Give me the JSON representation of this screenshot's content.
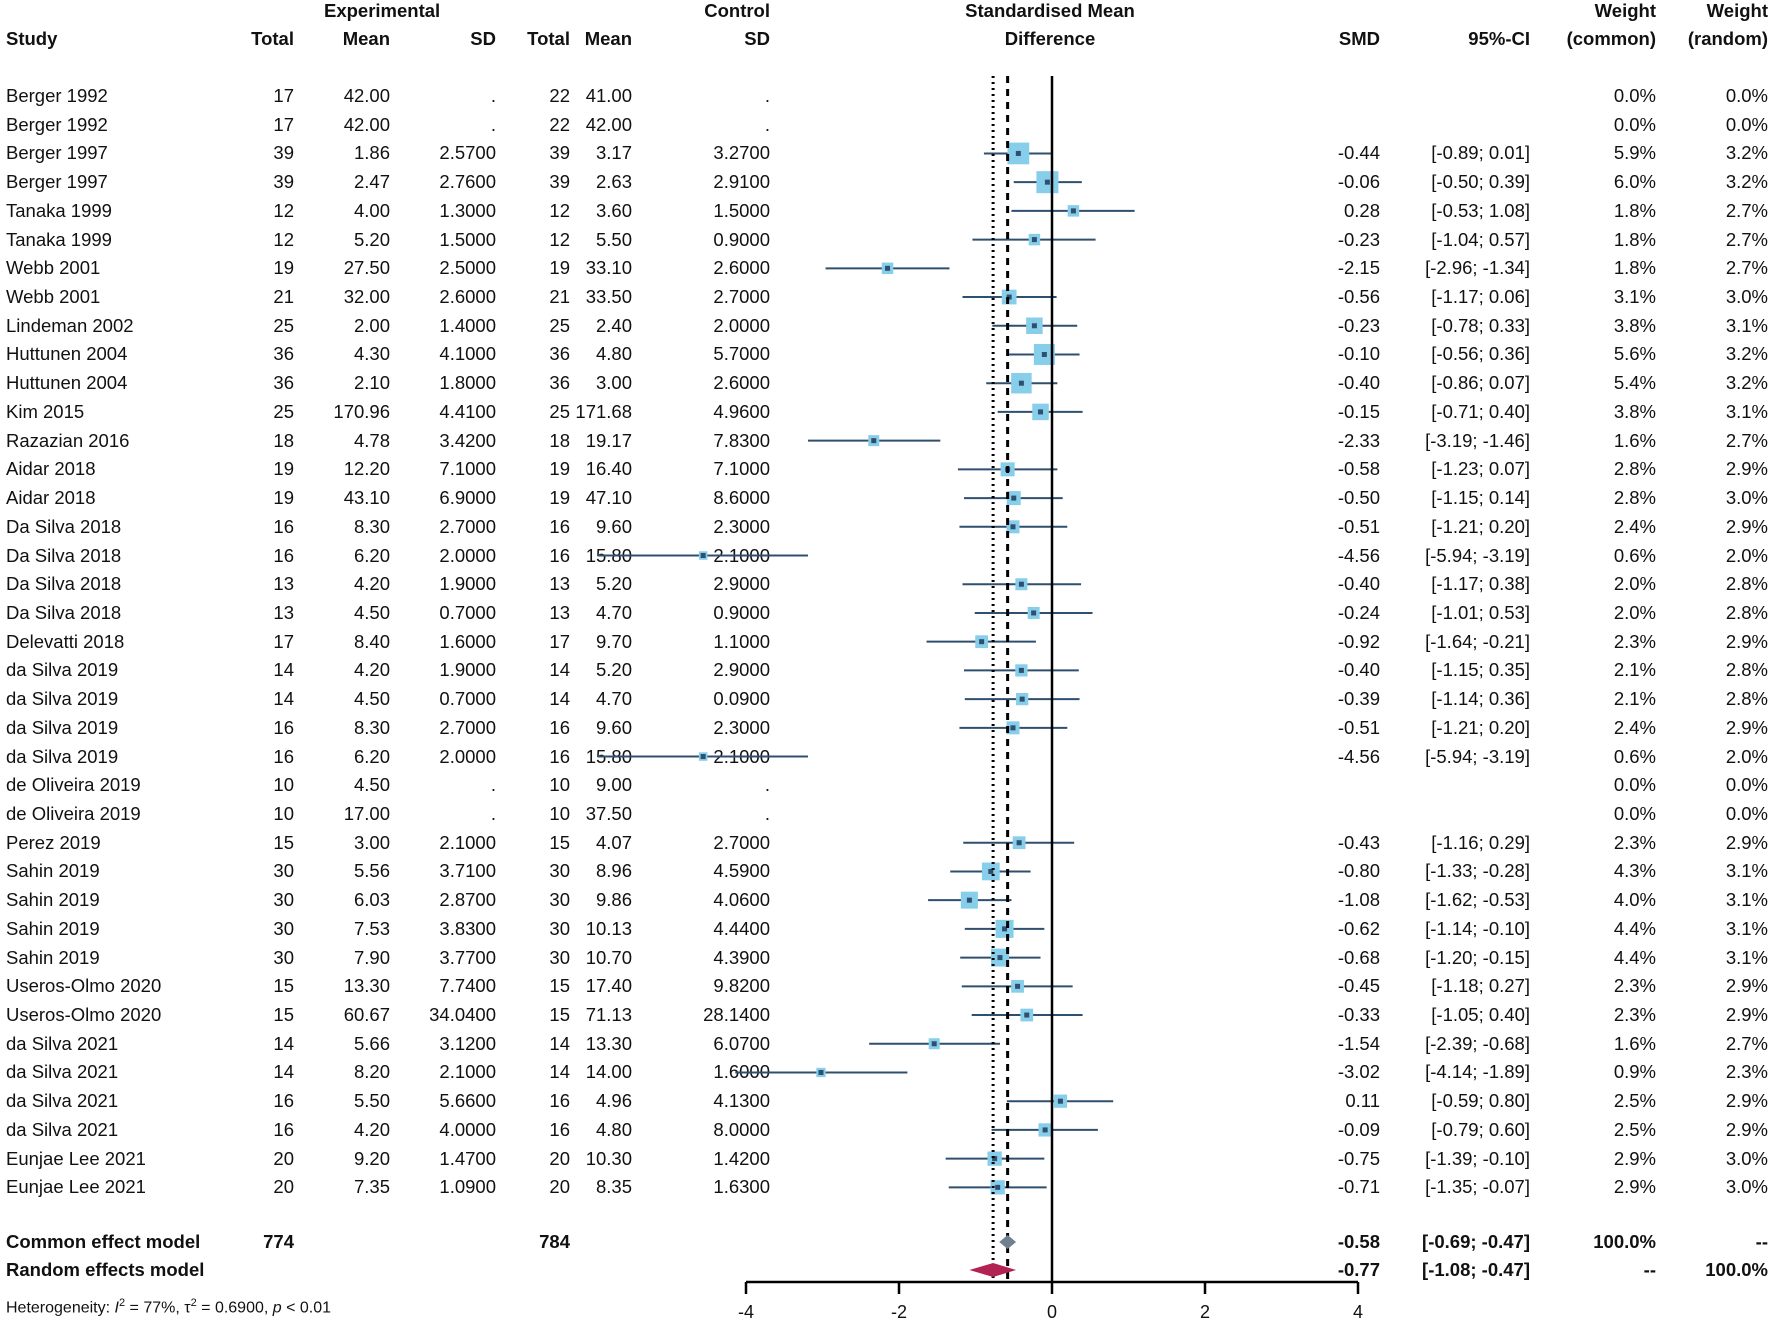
{
  "headers": {
    "experimental": "Experimental",
    "control": "Control",
    "smd_group_line1": "Standardised Mean",
    "smd_group_line2": "Difference",
    "study": "Study",
    "total": "Total",
    "mean": "Mean",
    "sd": "SD",
    "smd": "SMD",
    "ci": "95%-CI",
    "weight": "Weight",
    "weight_common": "(common)",
    "weight_random": "(random)"
  },
  "chart_data": {
    "type": "forest",
    "title": "Standardised Mean Difference",
    "xlim": [
      -4,
      4
    ],
    "xticks": [
      "-4",
      "-2",
      "0",
      "2",
      "4"
    ],
    "xtick_values": [
      -4,
      -2,
      0,
      2,
      4
    ],
    "null_line": 0,
    "common_estimate": -0.58,
    "random_estimate": -0.77,
    "studies": [
      {
        "study": "Berger 1992",
        "e_total": "17",
        "e_mean": "42.00",
        "e_sd": ".",
        "c_total": "22",
        "c_mean": "41.00",
        "c_sd": ".",
        "smd": "",
        "ci": "",
        "w_common": "0.0%",
        "w_random": "0.0%",
        "est": null,
        "lo": null,
        "hi": null,
        "w": 0
      },
      {
        "study": "Berger 1992",
        "e_total": "17",
        "e_mean": "42.00",
        "e_sd": ".",
        "c_total": "22",
        "c_mean": "42.00",
        "c_sd": ".",
        "smd": "",
        "ci": "",
        "w_common": "0.0%",
        "w_random": "0.0%",
        "est": null,
        "lo": null,
        "hi": null,
        "w": 0
      },
      {
        "study": "Berger 1997",
        "e_total": "39",
        "e_mean": "1.86",
        "e_sd": "2.5700",
        "c_total": "39",
        "c_mean": "3.17",
        "c_sd": "3.2700",
        "smd": "-0.44",
        "ci": "[-0.89; 0.01]",
        "w_common": "5.9%",
        "w_random": "3.2%",
        "est": -0.44,
        "lo": -0.89,
        "hi": 0.01,
        "w": 5.9
      },
      {
        "study": "Berger 1997",
        "e_total": "39",
        "e_mean": "2.47",
        "e_sd": "2.7600",
        "c_total": "39",
        "c_mean": "2.63",
        "c_sd": "2.9100",
        "smd": "-0.06",
        "ci": "[-0.50; 0.39]",
        "w_common": "6.0%",
        "w_random": "3.2%",
        "est": -0.06,
        "lo": -0.5,
        "hi": 0.39,
        "w": 6.0
      },
      {
        "study": "Tanaka 1999",
        "e_total": "12",
        "e_mean": "4.00",
        "e_sd": "1.3000",
        "c_total": "12",
        "c_mean": "3.60",
        "c_sd": "1.5000",
        "smd": "0.28",
        "ci": "[-0.53; 1.08]",
        "w_common": "1.8%",
        "w_random": "2.7%",
        "est": 0.28,
        "lo": -0.53,
        "hi": 1.08,
        "w": 1.8
      },
      {
        "study": "Tanaka 1999",
        "e_total": "12",
        "e_mean": "5.20",
        "e_sd": "1.5000",
        "c_total": "12",
        "c_mean": "5.50",
        "c_sd": "0.9000",
        "smd": "-0.23",
        "ci": "[-1.04; 0.57]",
        "w_common": "1.8%",
        "w_random": "2.7%",
        "est": -0.23,
        "lo": -1.04,
        "hi": 0.57,
        "w": 1.8
      },
      {
        "study": "Webb 2001",
        "e_total": "19",
        "e_mean": "27.50",
        "e_sd": "2.5000",
        "c_total": "19",
        "c_mean": "33.10",
        "c_sd": "2.6000",
        "smd": "-2.15",
        "ci": "[-2.96; -1.34]",
        "w_common": "1.8%",
        "w_random": "2.7%",
        "est": -2.15,
        "lo": -2.96,
        "hi": -1.34,
        "w": 1.8
      },
      {
        "study": "Webb 2001",
        "e_total": "21",
        "e_mean": "32.00",
        "e_sd": "2.6000",
        "c_total": "21",
        "c_mean": "33.50",
        "c_sd": "2.7000",
        "smd": "-0.56",
        "ci": "[-1.17; 0.06]",
        "w_common": "3.1%",
        "w_random": "3.0%",
        "est": -0.56,
        "lo": -1.17,
        "hi": 0.06,
        "w": 3.1
      },
      {
        "study": "Lindeman 2002",
        "e_total": "25",
        "e_mean": "2.00",
        "e_sd": "1.4000",
        "c_total": "25",
        "c_mean": "2.40",
        "c_sd": "2.0000",
        "smd": "-0.23",
        "ci": "[-0.78; 0.33]",
        "w_common": "3.8%",
        "w_random": "3.1%",
        "est": -0.23,
        "lo": -0.78,
        "hi": 0.33,
        "w": 3.8
      },
      {
        "study": "Huttunen 2004",
        "e_total": "36",
        "e_mean": "4.30",
        "e_sd": "4.1000",
        "c_total": "36",
        "c_mean": "4.80",
        "c_sd": "5.7000",
        "smd": "-0.10",
        "ci": "[-0.56; 0.36]",
        "w_common": "5.6%",
        "w_random": "3.2%",
        "est": -0.1,
        "lo": -0.56,
        "hi": 0.36,
        "w": 5.6
      },
      {
        "study": "Huttunen 2004",
        "e_total": "36",
        "e_mean": "2.10",
        "e_sd": "1.8000",
        "c_total": "36",
        "c_mean": "3.00",
        "c_sd": "2.6000",
        "smd": "-0.40",
        "ci": "[-0.86; 0.07]",
        "w_common": "5.4%",
        "w_random": "3.2%",
        "est": -0.4,
        "lo": -0.86,
        "hi": 0.07,
        "w": 5.4
      },
      {
        "study": "Kim 2015",
        "e_total": "25",
        "e_mean": "170.96",
        "e_sd": "4.4100",
        "c_total": "25",
        "c_mean": "171.68",
        "c_sd": "4.9600",
        "smd": "-0.15",
        "ci": "[-0.71; 0.40]",
        "w_common": "3.8%",
        "w_random": "3.1%",
        "est": -0.15,
        "lo": -0.71,
        "hi": 0.4,
        "w": 3.8
      },
      {
        "study": "Razazian 2016",
        "e_total": "18",
        "e_mean": "4.78",
        "e_sd": "3.4200",
        "c_total": "18",
        "c_mean": "19.17",
        "c_sd": "7.8300",
        "smd": "-2.33",
        "ci": "[-3.19; -1.46]",
        "w_common": "1.6%",
        "w_random": "2.7%",
        "est": -2.33,
        "lo": -3.19,
        "hi": -1.46,
        "w": 1.6
      },
      {
        "study": "Aidar 2018",
        "e_total": "19",
        "e_mean": "12.20",
        "e_sd": "7.1000",
        "c_total": "19",
        "c_mean": "16.40",
        "c_sd": "7.1000",
        "smd": "-0.58",
        "ci": "[-1.23; 0.07]",
        "w_common": "2.8%",
        "w_random": "2.9%",
        "est": -0.58,
        "lo": -1.23,
        "hi": 0.07,
        "w": 2.8
      },
      {
        "study": "Aidar 2018",
        "e_total": "19",
        "e_mean": "43.10",
        "e_sd": "6.9000",
        "c_total": "19",
        "c_mean": "47.10",
        "c_sd": "8.6000",
        "smd": "-0.50",
        "ci": "[-1.15; 0.14]",
        "w_common": "2.8%",
        "w_random": "3.0%",
        "est": -0.5,
        "lo": -1.15,
        "hi": 0.14,
        "w": 2.8
      },
      {
        "study": "Da Silva 2018",
        "e_total": "16",
        "e_mean": "8.30",
        "e_sd": "2.7000",
        "c_total": "16",
        "c_mean": "9.60",
        "c_sd": "2.3000",
        "smd": "-0.51",
        "ci": "[-1.21; 0.20]",
        "w_common": "2.4%",
        "w_random": "2.9%",
        "est": -0.51,
        "lo": -1.21,
        "hi": 0.2,
        "w": 2.4
      },
      {
        "study": "Da Silva 2018",
        "e_total": "16",
        "e_mean": "6.20",
        "e_sd": "2.0000",
        "c_total": "16",
        "c_mean": "15.80",
        "c_sd": "2.1000",
        "smd": "-4.56",
        "ci": "[-5.94; -3.19]",
        "w_common": "0.6%",
        "w_random": "2.0%",
        "est": -4.56,
        "lo": -5.94,
        "hi": -3.19,
        "w": 0.6
      },
      {
        "study": "Da Silva 2018",
        "e_total": "13",
        "e_mean": "4.20",
        "e_sd": "1.9000",
        "c_total": "13",
        "c_mean": "5.20",
        "c_sd": "2.9000",
        "smd": "-0.40",
        "ci": "[-1.17; 0.38]",
        "w_common": "2.0%",
        "w_random": "2.8%",
        "est": -0.4,
        "lo": -1.17,
        "hi": 0.38,
        "w": 2.0
      },
      {
        "study": "Da Silva 2018",
        "e_total": "13",
        "e_mean": "4.50",
        "e_sd": "0.7000",
        "c_total": "13",
        "c_mean": "4.70",
        "c_sd": "0.9000",
        "smd": "-0.24",
        "ci": "[-1.01; 0.53]",
        "w_common": "2.0%",
        "w_random": "2.8%",
        "est": -0.24,
        "lo": -1.01,
        "hi": 0.53,
        "w": 2.0
      },
      {
        "study": "Delevatti 2018",
        "e_total": "17",
        "e_mean": "8.40",
        "e_sd": "1.6000",
        "c_total": "17",
        "c_mean": "9.70",
        "c_sd": "1.1000",
        "smd": "-0.92",
        "ci": "[-1.64; -0.21]",
        "w_common": "2.3%",
        "w_random": "2.9%",
        "est": -0.92,
        "lo": -1.64,
        "hi": -0.21,
        "w": 2.3
      },
      {
        "study": "da Silva 2019",
        "e_total": "14",
        "e_mean": "4.20",
        "e_sd": "1.9000",
        "c_total": "14",
        "c_mean": "5.20",
        "c_sd": "2.9000",
        "smd": "-0.40",
        "ci": "[-1.15; 0.35]",
        "w_common": "2.1%",
        "w_random": "2.8%",
        "est": -0.4,
        "lo": -1.15,
        "hi": 0.35,
        "w": 2.1
      },
      {
        "study": "da Silva 2019",
        "e_total": "14",
        "e_mean": "4.50",
        "e_sd": "0.7000",
        "c_total": "14",
        "c_mean": "4.70",
        "c_sd": "0.0900",
        "smd": "-0.39",
        "ci": "[-1.14; 0.36]",
        "w_common": "2.1%",
        "w_random": "2.8%",
        "est": -0.39,
        "lo": -1.14,
        "hi": 0.36,
        "w": 2.1
      },
      {
        "study": "da Silva 2019",
        "e_total": "16",
        "e_mean": "8.30",
        "e_sd": "2.7000",
        "c_total": "16",
        "c_mean": "9.60",
        "c_sd": "2.3000",
        "smd": "-0.51",
        "ci": "[-1.21; 0.20]",
        "w_common": "2.4%",
        "w_random": "2.9%",
        "est": -0.51,
        "lo": -1.21,
        "hi": 0.2,
        "w": 2.4
      },
      {
        "study": "da Silva 2019",
        "e_total": "16",
        "e_mean": "6.20",
        "e_sd": "2.0000",
        "c_total": "16",
        "c_mean": "15.80",
        "c_sd": "2.1000",
        "smd": "-4.56",
        "ci": "[-5.94; -3.19]",
        "w_common": "0.6%",
        "w_random": "2.0%",
        "est": -4.56,
        "lo": -5.94,
        "hi": -3.19,
        "w": 0.6
      },
      {
        "study": "de Oliveira 2019",
        "e_total": "10",
        "e_mean": "4.50",
        "e_sd": ".",
        "c_total": "10",
        "c_mean": "9.00",
        "c_sd": ".",
        "smd": "",
        "ci": "",
        "w_common": "0.0%",
        "w_random": "0.0%",
        "est": null,
        "lo": null,
        "hi": null,
        "w": 0
      },
      {
        "study": "de Oliveira 2019",
        "e_total": "10",
        "e_mean": "17.00",
        "e_sd": ".",
        "c_total": "10",
        "c_mean": "37.50",
        "c_sd": ".",
        "smd": "",
        "ci": "",
        "w_common": "0.0%",
        "w_random": "0.0%",
        "est": null,
        "lo": null,
        "hi": null,
        "w": 0
      },
      {
        "study": "Perez 2019",
        "e_total": "15",
        "e_mean": "3.00",
        "e_sd": "2.1000",
        "c_total": "15",
        "c_mean": "4.07",
        "c_sd": "2.7000",
        "smd": "-0.43",
        "ci": "[-1.16; 0.29]",
        "w_common": "2.3%",
        "w_random": "2.9%",
        "est": -0.43,
        "lo": -1.16,
        "hi": 0.29,
        "w": 2.3
      },
      {
        "study": "Sahin 2019",
        "e_total": "30",
        "e_mean": "5.56",
        "e_sd": "3.7100",
        "c_total": "30",
        "c_mean": "8.96",
        "c_sd": "4.5900",
        "smd": "-0.80",
        "ci": "[-1.33; -0.28]",
        "w_common": "4.3%",
        "w_random": "3.1%",
        "est": -0.8,
        "lo": -1.33,
        "hi": -0.28,
        "w": 4.3
      },
      {
        "study": "Sahin 2019",
        "e_total": "30",
        "e_mean": "6.03",
        "e_sd": "2.8700",
        "c_total": "30",
        "c_mean": "9.86",
        "c_sd": "4.0600",
        "smd": "-1.08",
        "ci": "[-1.62; -0.53]",
        "w_common": "4.0%",
        "w_random": "3.1%",
        "est": -1.08,
        "lo": -1.62,
        "hi": -0.53,
        "w": 4.0
      },
      {
        "study": "Sahin 2019",
        "e_total": "30",
        "e_mean": "7.53",
        "e_sd": "3.8300",
        "c_total": "30",
        "c_mean": "10.13",
        "c_sd": "4.4400",
        "smd": "-0.62",
        "ci": "[-1.14; -0.10]",
        "w_common": "4.4%",
        "w_random": "3.1%",
        "est": -0.62,
        "lo": -1.14,
        "hi": -0.1,
        "w": 4.4
      },
      {
        "study": "Sahin 2019",
        "e_total": "30",
        "e_mean": "7.90",
        "e_sd": "3.7700",
        "c_total": "30",
        "c_mean": "10.70",
        "c_sd": "4.3900",
        "smd": "-0.68",
        "ci": "[-1.20; -0.15]",
        "w_common": "4.4%",
        "w_random": "3.1%",
        "est": -0.68,
        "lo": -1.2,
        "hi": -0.15,
        "w": 4.4
      },
      {
        "study": "Useros-Olmo 2020",
        "e_total": "15",
        "e_mean": "13.30",
        "e_sd": "7.7400",
        "c_total": "15",
        "c_mean": "17.40",
        "c_sd": "9.8200",
        "smd": "-0.45",
        "ci": "[-1.18; 0.27]",
        "w_common": "2.3%",
        "w_random": "2.9%",
        "est": -0.45,
        "lo": -1.18,
        "hi": 0.27,
        "w": 2.3
      },
      {
        "study": "Useros-Olmo 2020",
        "e_total": "15",
        "e_mean": "60.67",
        "e_sd": "34.0400",
        "c_total": "15",
        "c_mean": "71.13",
        "c_sd": "28.1400",
        "smd": "-0.33",
        "ci": "[-1.05; 0.40]",
        "w_common": "2.3%",
        "w_random": "2.9%",
        "est": -0.33,
        "lo": -1.05,
        "hi": 0.4,
        "w": 2.3
      },
      {
        "study": "da Silva 2021",
        "e_total": "14",
        "e_mean": "5.66",
        "e_sd": "3.1200",
        "c_total": "14",
        "c_mean": "13.30",
        "c_sd": "6.0700",
        "smd": "-1.54",
        "ci": "[-2.39; -0.68]",
        "w_common": "1.6%",
        "w_random": "2.7%",
        "est": -1.54,
        "lo": -2.39,
        "hi": -0.68,
        "w": 1.6
      },
      {
        "study": "da Silva 2021",
        "e_total": "14",
        "e_mean": "8.20",
        "e_sd": "2.1000",
        "c_total": "14",
        "c_mean": "14.00",
        "c_sd": "1.6000",
        "smd": "-3.02",
        "ci": "[-4.14; -1.89]",
        "w_common": "0.9%",
        "w_random": "2.3%",
        "est": -3.02,
        "lo": -4.14,
        "hi": -1.89,
        "w": 0.9
      },
      {
        "study": "da Silva 2021",
        "e_total": "16",
        "e_mean": "5.50",
        "e_sd": "5.6600",
        "c_total": "16",
        "c_mean": "4.96",
        "c_sd": "4.1300",
        "smd": "0.11",
        "ci": "[-0.59; 0.80]",
        "w_common": "2.5%",
        "w_random": "2.9%",
        "est": 0.11,
        "lo": -0.59,
        "hi": 0.8,
        "w": 2.5
      },
      {
        "study": "da Silva 2021",
        "e_total": "16",
        "e_mean": "4.20",
        "e_sd": "4.0000",
        "c_total": "16",
        "c_mean": "4.80",
        "c_sd": "8.0000",
        "smd": "-0.09",
        "ci": "[-0.79; 0.60]",
        "w_common": "2.5%",
        "w_random": "2.9%",
        "est": -0.09,
        "lo": -0.79,
        "hi": 0.6,
        "w": 2.5
      },
      {
        "study": "Eunjae Lee 2021",
        "e_total": "20",
        "e_mean": "9.20",
        "e_sd": "1.4700",
        "c_total": "20",
        "c_mean": "10.30",
        "c_sd": "1.4200",
        "smd": "-0.75",
        "ci": "[-1.39; -0.10]",
        "w_common": "2.9%",
        "w_random": "3.0%",
        "est": -0.75,
        "lo": -1.39,
        "hi": -0.1,
        "w": 2.9
      },
      {
        "study": "Eunjae Lee 2021",
        "e_total": "20",
        "e_mean": "7.35",
        "e_sd": "1.0900",
        "c_total": "20",
        "c_mean": "8.35",
        "c_sd": "1.6300",
        "smd": "-0.71",
        "ci": "[-1.35; -0.07]",
        "w_common": "2.9%",
        "w_random": "3.0%",
        "est": -0.71,
        "lo": -1.35,
        "hi": -0.07,
        "w": 2.9
      }
    ],
    "summary": {
      "common": {
        "label": "Common effect model",
        "e_total": "774",
        "c_total": "784",
        "smd": "-0.58",
        "ci": "[-0.69; -0.47]",
        "w_common": "100.0%",
        "w_random": "--",
        "est": -0.58,
        "lo": -0.69,
        "hi": -0.47
      },
      "random": {
        "label": "Random effects model",
        "smd": "-0.77",
        "ci": "[-1.08; -0.47]",
        "w_common": "--",
        "w_random": "100.0%",
        "est": -0.77,
        "lo": -1.08,
        "hi": -0.47
      }
    },
    "heterogeneity": {
      "label": "Heterogeneity: ",
      "i2_sym": "I",
      "i2_sup": "2",
      "i2_val": " = 77%, ",
      "tau2_sym": "τ",
      "tau2_sup": "2",
      "tau2_val": " = 0.6900, ",
      "p_sym": "p",
      "p_val": " < 0.01"
    },
    "colors": {
      "box": "#87ceeb",
      "ci_line": "#2f4f6f",
      "common_diamond": "#708090",
      "random_diamond": "#b22252",
      "axis": "#000000"
    }
  }
}
